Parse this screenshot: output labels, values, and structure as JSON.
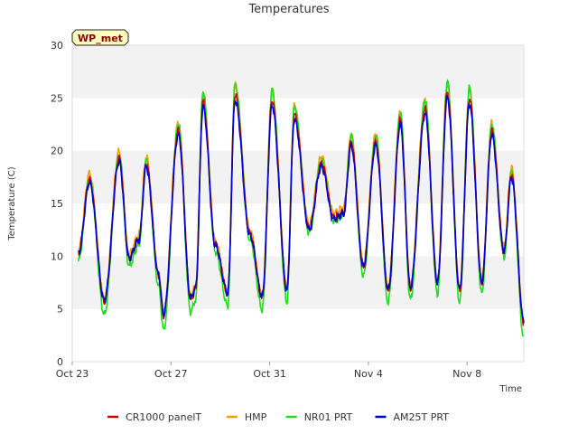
{
  "chart_data": {
    "type": "line",
    "title": "Temperatures",
    "xlabel": "Time",
    "ylabel": "Temperature (C)",
    "ylim": [
      0,
      30
    ],
    "xlim": [
      0,
      18.3
    ],
    "yticks": [
      0,
      5,
      10,
      15,
      20,
      25,
      30
    ],
    "xticks": [
      {
        "value": 0,
        "label": "Oct 23"
      },
      {
        "value": 4,
        "label": "Oct 27"
      },
      {
        "value": 8,
        "label": "Oct 31"
      },
      {
        "value": 12,
        "label": "Nov 4"
      },
      {
        "value": 16,
        "label": "Nov 8"
      }
    ],
    "badge": "WP_met",
    "grid": "alternating horizontal bands",
    "legend_position": "bottom",
    "reference_points": [
      [
        0.25,
        10.2
      ],
      [
        0.7,
        17.0
      ],
      [
        1.3,
        5.8
      ],
      [
        1.9,
        19.0
      ],
      [
        2.3,
        9.8
      ],
      [
        2.7,
        11.5
      ],
      [
        3.0,
        18.5
      ],
      [
        3.5,
        8.2
      ],
      [
        3.7,
        4.5
      ],
      [
        4.3,
        21.5
      ],
      [
        4.8,
        6.0
      ],
      [
        5.0,
        7.0
      ],
      [
        5.3,
        24.2
      ],
      [
        5.8,
        11.0
      ],
      [
        6.3,
        6.5
      ],
      [
        6.6,
        24.8
      ],
      [
        7.2,
        12.0
      ],
      [
        7.7,
        6.2
      ],
      [
        8.1,
        24.3
      ],
      [
        8.7,
        6.8
      ],
      [
        9.0,
        23.0
      ],
      [
        9.6,
        12.5
      ],
      [
        10.1,
        18.5
      ],
      [
        10.6,
        13.5
      ],
      [
        11.0,
        14.0
      ],
      [
        11.3,
        20.5
      ],
      [
        11.8,
        9.0
      ],
      [
        12.3,
        20.5
      ],
      [
        12.8,
        6.8
      ],
      [
        13.3,
        22.5
      ],
      [
        13.7,
        7.0
      ],
      [
        14.3,
        23.5
      ],
      [
        14.8,
        7.5
      ],
      [
        15.2,
        25.0
      ],
      [
        15.7,
        6.8
      ],
      [
        16.1,
        24.5
      ],
      [
        16.6,
        7.5
      ],
      [
        17.0,
        21.5
      ],
      [
        17.5,
        10.5
      ],
      [
        17.8,
        17.5
      ],
      [
        18.3,
        3.8
      ]
    ],
    "series": [
      {
        "name": "CR1000 panelT",
        "color": "#cc0000",
        "offset": 0.1,
        "amp": 1.03
      },
      {
        "name": "HMP",
        "color": "#f0a000",
        "offset": 0.5,
        "amp": 1.07
      },
      {
        "name": "NR01 PRT",
        "color": "#22dd22",
        "offset": -0.4,
        "amp": 1.15
      },
      {
        "name": "AM25T PRT",
        "color": "#0000cc",
        "offset": 0.0,
        "amp": 1.0
      }
    ]
  }
}
